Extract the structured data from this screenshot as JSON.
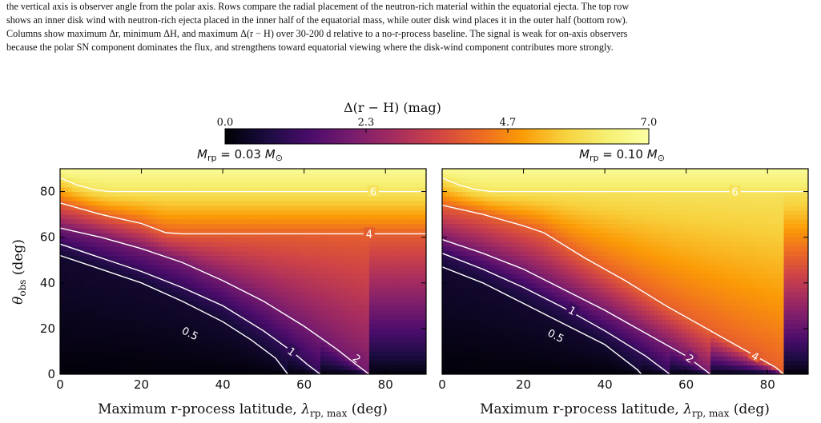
{
  "caption": {
    "line1": "the vertical axis is observer angle from the polar axis. Rows compare the radial placement of the neutron-rich material within the equatorial ejecta. The top row",
    "line2": "shows an inner disk wind with neutron-rich ejecta placed in the inner half of the equatorial mass, while outer disk wind places it in the outer half (bottom row).",
    "line3": "Columns show maximum Δr, minimum ΔH, and maximum Δ(r − H) over 30-200 d relative to a no-r-process baseline. The signal is weak for on-axis observers",
    "line4": "because the polar SN component dominates the flux, and strengthens toward equatorial viewing where the disk-wind component contributes more strongly."
  },
  "colorbar": {
    "label": "Δ(r − H) (mag)",
    "ticks": [
      "0.0",
      "2.3",
      "4.7",
      "7.0"
    ],
    "min": 0.0,
    "max": 7.0,
    "colormap": "inferno"
  },
  "chart_data": [
    {
      "type": "heatmap",
      "title": "M_rp = 0.03 M_⊙",
      "xlabel": "Maximum r-process latitude, λ_rp,max (deg)",
      "ylabel": "θ_obs (deg)",
      "xlim": [
        0,
        90
      ],
      "ylim": [
        0,
        90
      ],
      "xticks": [
        0,
        20,
        40,
        60,
        80
      ],
      "yticks": [
        0,
        20,
        40,
        60,
        80
      ],
      "contours": [
        {
          "level": "0.5",
          "points": [
            [
              0,
              52
            ],
            [
              10,
              46
            ],
            [
              20,
              40
            ],
            [
              30,
              32
            ],
            [
              40,
              23
            ],
            [
              47,
              15
            ],
            [
              53,
              7
            ],
            [
              56,
              0
            ]
          ]
        },
        {
          "level": "1",
          "points": [
            [
              0,
              57
            ],
            [
              10,
              51
            ],
            [
              20,
              45
            ],
            [
              30,
              38
            ],
            [
              40,
              30
            ],
            [
              50,
              19
            ],
            [
              57,
              10
            ],
            [
              61,
              4
            ],
            [
              64,
              0
            ]
          ]
        },
        {
          "level": "2",
          "points": [
            [
              0,
              64
            ],
            [
              10,
              60
            ],
            [
              20,
              55
            ],
            [
              30,
              49
            ],
            [
              40,
              41
            ],
            [
              50,
              32
            ],
            [
              60,
              21
            ],
            [
              68,
              11
            ],
            [
              73,
              4
            ],
            [
              76,
              0
            ]
          ]
        },
        {
          "level": "4",
          "points": [
            [
              0,
              75
            ],
            [
              10,
              70
            ],
            [
              20,
              66
            ],
            [
              26,
              62
            ],
            [
              30,
              61.5
            ],
            [
              90,
              61.5
            ]
          ]
        },
        {
          "level": "6",
          "points": [
            [
              0,
              86
            ],
            [
              4,
              83
            ],
            [
              8,
              81
            ],
            [
              12,
              80
            ],
            [
              90,
              80
            ]
          ]
        }
      ],
      "contour_labels": [
        {
          "text": "0.5",
          "x": 32,
          "y": 18
        },
        {
          "text": "1",
          "x": 57,
          "y": 10
        },
        {
          "text": "2",
          "x": 73,
          "y": 7
        },
        {
          "text": "4",
          "x": 76,
          "y": 61.5
        },
        {
          "text": "6",
          "x": 77,
          "y": 80
        }
      ],
      "field": {
        "plateau": 4.9,
        "top_value": 6.8
      }
    },
    {
      "type": "heatmap",
      "title": "M_rp = 0.10 M_⊙",
      "xlabel": "Maximum r-process latitude, λ_rp,max (deg)",
      "ylabel": "",
      "xlim": [
        0,
        90
      ],
      "ylim": [
        0,
        90
      ],
      "xticks": [
        0,
        20,
        40,
        60,
        80
      ],
      "yticks": [
        0,
        20,
        40,
        60,
        80
      ],
      "contours": [
        {
          "level": "0.5",
          "points": [
            [
              0,
              47
            ],
            [
              10,
              40
            ],
            [
              20,
              31
            ],
            [
              30,
              22
            ],
            [
              40,
              13
            ],
            [
              48,
              2
            ],
            [
              49,
              0
            ]
          ]
        },
        {
          "level": "1",
          "points": [
            [
              0,
              53
            ],
            [
              10,
              46
            ],
            [
              20,
              38
            ],
            [
              30,
              29
            ],
            [
              40,
              19
            ],
            [
              50,
              8
            ],
            [
              56,
              0
            ]
          ]
        },
        {
          "level": "2",
          "points": [
            [
              0,
              59
            ],
            [
              10,
              53
            ],
            [
              20,
              46
            ],
            [
              30,
              37
            ],
            [
              40,
              28
            ],
            [
              50,
              18
            ],
            [
              60,
              8
            ],
            [
              66,
              0
            ]
          ]
        },
        {
          "level": "4",
          "points": [
            [
              0,
              74
            ],
            [
              10,
              70
            ],
            [
              20,
              65
            ],
            [
              25,
              62
            ],
            [
              35,
              51
            ],
            [
              45,
              41
            ],
            [
              55,
              30
            ],
            [
              65,
              20
            ],
            [
              75,
              10
            ],
            [
              82,
              3
            ],
            [
              84,
              0
            ]
          ]
        },
        {
          "level": "6",
          "points": [
            [
              0,
              86
            ],
            [
              4,
              83
            ],
            [
              8,
              81
            ],
            [
              12,
              80
            ],
            [
              90,
              80
            ]
          ]
        }
      ],
      "contour_labels": [
        {
          "text": "0.5",
          "x": 28,
          "y": 17
        },
        {
          "text": "1",
          "x": 32,
          "y": 28
        },
        {
          "text": "2",
          "x": 61,
          "y": 7
        },
        {
          "text": "4",
          "x": 77,
          "y": 8
        },
        {
          "text": "6",
          "x": 72,
          "y": 80
        }
      ],
      "field": {
        "plateau": 5.6,
        "top_value": 6.8
      }
    }
  ]
}
